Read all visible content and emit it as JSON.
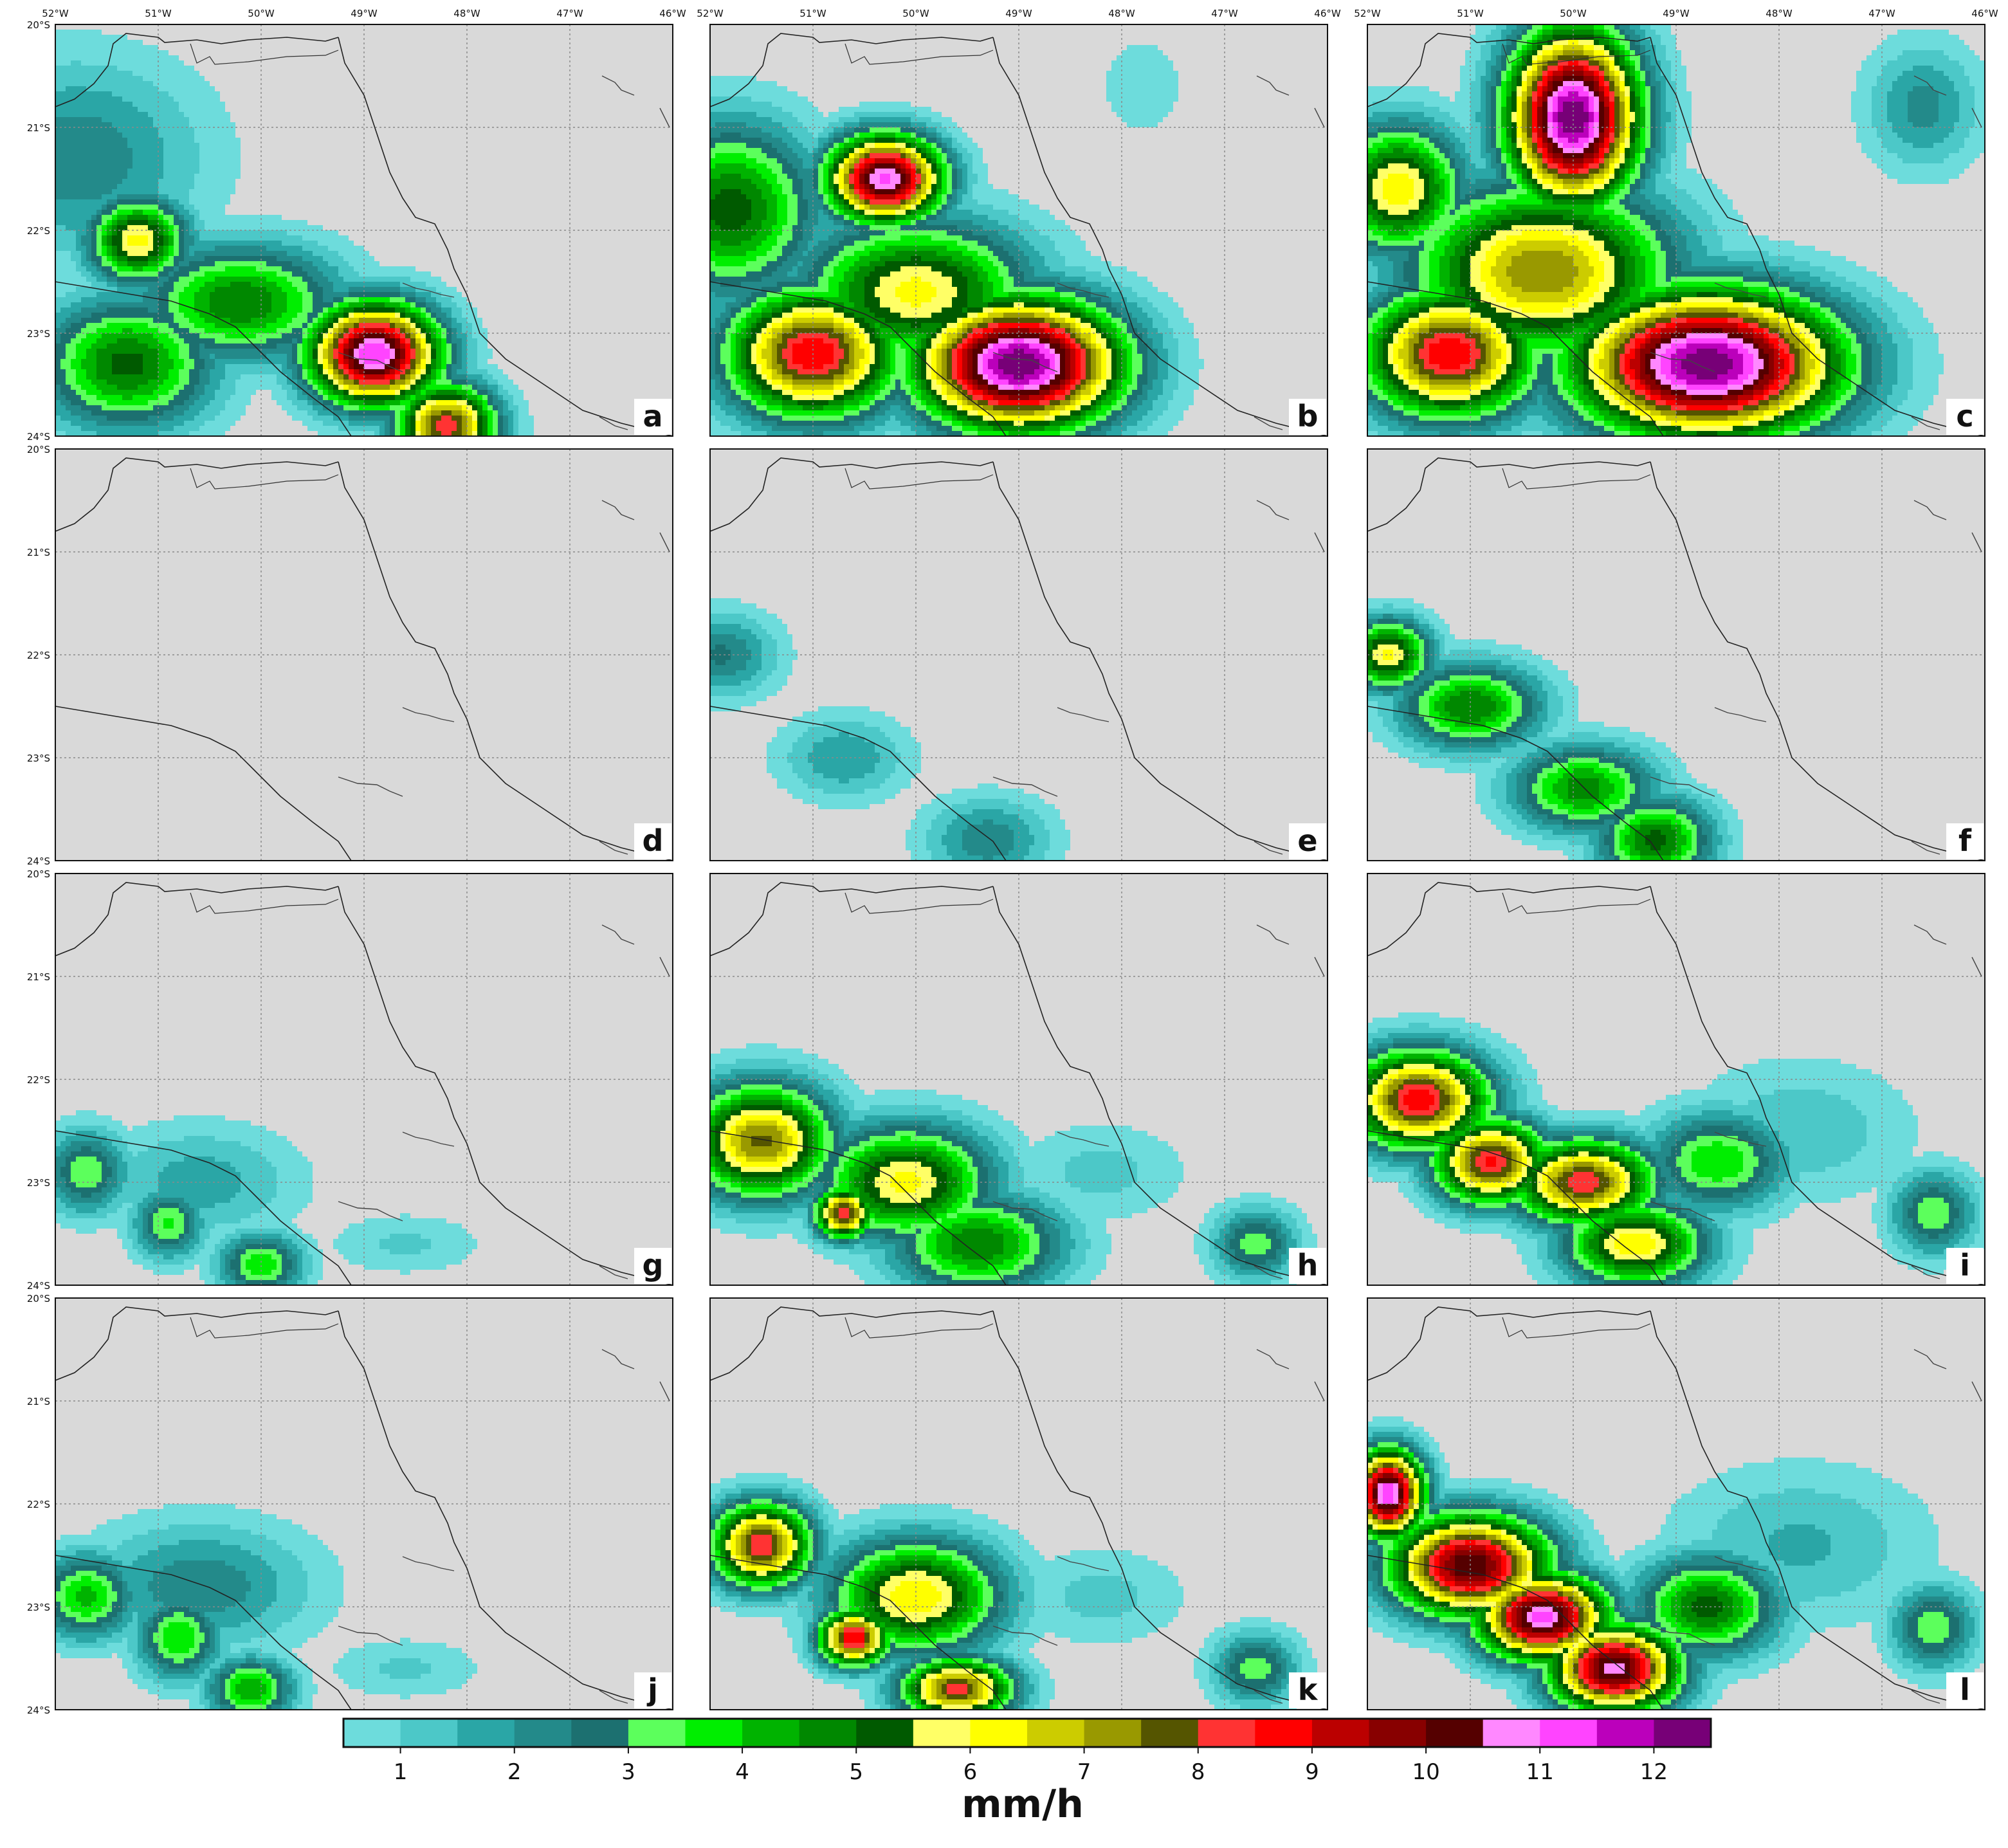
{
  "figure": {
    "lon_ticks": [
      "52°W",
      "51°W",
      "50°W",
      "49°W",
      "48°W",
      "47°W",
      "46°W"
    ],
    "lat_ticks": [
      "20°S",
      "21°S",
      "22°S",
      "23°S",
      "24°S"
    ],
    "lon_range": [
      -52,
      -46
    ],
    "lat_range": [
      -24,
      -20
    ],
    "ocean_color": "#d9d9d9",
    "grid": true
  },
  "panels": [
    {
      "label": "a",
      "rain_cells": [
        {
          "lon": -51.2,
          "lat": -22.1,
          "peak": 6.2,
          "sx": 0.35,
          "sy": 0.3
        },
        {
          "lon": -51.3,
          "lat": -23.3,
          "peak": 5.2,
          "sx": 0.6,
          "sy": 0.45
        },
        {
          "lon": -50.2,
          "lat": -22.7,
          "peak": 5.0,
          "sx": 0.7,
          "sy": 0.4
        },
        {
          "lon": -48.9,
          "lat": -23.2,
          "peak": 11.5,
          "sx": 0.45,
          "sy": 0.35
        },
        {
          "lon": -48.2,
          "lat": -23.9,
          "peak": 8.3,
          "sx": 0.35,
          "sy": 0.3
        },
        {
          "lon": -51.8,
          "lat": -21.3,
          "peak": 2.4,
          "sx": 0.9,
          "sy": 0.7
        }
      ]
    },
    {
      "label": "b",
      "rain_cells": [
        {
          "lon": -50.3,
          "lat": -21.5,
          "peak": 11.2,
          "sx": 0.4,
          "sy": 0.3
        },
        {
          "lon": -51.8,
          "lat": -21.8,
          "peak": 5.3,
          "sx": 0.6,
          "sy": 0.6
        },
        {
          "lon": -51.0,
          "lat": -23.2,
          "peak": 9.0,
          "sx": 0.6,
          "sy": 0.45
        },
        {
          "lon": -49.0,
          "lat": -23.3,
          "peak": 12.5,
          "sx": 0.7,
          "sy": 0.45
        },
        {
          "lon": -50.0,
          "lat": -22.6,
          "peak": 6.2,
          "sx": 0.8,
          "sy": 0.5
        },
        {
          "lon": -47.8,
          "lat": -20.6,
          "peak": 1.0,
          "sx": 0.3,
          "sy": 0.35
        }
      ]
    },
    {
      "label": "c",
      "rain_cells": [
        {
          "lon": -50.0,
          "lat": -20.9,
          "peak": 12.5,
          "sx": 0.45,
          "sy": 0.6
        },
        {
          "lon": -51.7,
          "lat": -21.6,
          "peak": 6.4,
          "sx": 0.45,
          "sy": 0.45
        },
        {
          "lon": -51.2,
          "lat": -23.2,
          "peak": 9.0,
          "sx": 0.6,
          "sy": 0.45
        },
        {
          "lon": -48.7,
          "lat": -23.3,
          "peak": 12.5,
          "sx": 0.9,
          "sy": 0.5
        },
        {
          "lon": -50.3,
          "lat": -22.4,
          "peak": 7.5,
          "sx": 0.9,
          "sy": 0.6
        },
        {
          "lon": -46.6,
          "lat": -20.8,
          "peak": 2.2,
          "sx": 0.4,
          "sy": 0.45
        }
      ]
    },
    {
      "label": "d",
      "rain_cells": []
    },
    {
      "label": "e",
      "rain_cells": [
        {
          "lon": -51.9,
          "lat": -22.0,
          "peak": 2.6,
          "sx": 0.4,
          "sy": 0.3
        },
        {
          "lon": -50.7,
          "lat": -23.0,
          "peak": 2.0,
          "sx": 0.45,
          "sy": 0.3
        },
        {
          "lon": -49.3,
          "lat": -23.8,
          "peak": 2.4,
          "sx": 0.45,
          "sy": 0.3
        }
      ]
    },
    {
      "label": "f",
      "rain_cells": [
        {
          "lon": -51.8,
          "lat": -22.0,
          "peak": 6.2,
          "sx": 0.3,
          "sy": 0.25
        },
        {
          "lon": -51.0,
          "lat": -22.5,
          "peak": 5.0,
          "sx": 0.5,
          "sy": 0.3
        },
        {
          "lon": -49.9,
          "lat": -23.3,
          "peak": 4.8,
          "sx": 0.5,
          "sy": 0.3
        },
        {
          "lon": -49.2,
          "lat": -23.8,
          "peak": 5.2,
          "sx": 0.4,
          "sy": 0.3
        }
      ]
    },
    {
      "label": "g",
      "rain_cells": [
        {
          "lon": -51.7,
          "lat": -22.9,
          "peak": 3.4,
          "sx": 0.3,
          "sy": 0.3
        },
        {
          "lon": -50.9,
          "lat": -23.4,
          "peak": 3.6,
          "sx": 0.25,
          "sy": 0.25
        },
        {
          "lon": -50.0,
          "lat": -23.8,
          "peak": 4.0,
          "sx": 0.3,
          "sy": 0.22
        },
        {
          "lon": -50.6,
          "lat": -23.0,
          "peak": 1.8,
          "sx": 0.7,
          "sy": 0.4
        },
        {
          "lon": -48.6,
          "lat": -23.6,
          "peak": 1.1,
          "sx": 0.55,
          "sy": 0.22
        }
      ]
    },
    {
      "label": "h",
      "rain_cells": [
        {
          "lon": -51.5,
          "lat": -22.6,
          "peak": 7.6,
          "sx": 0.5,
          "sy": 0.4
        },
        {
          "lon": -50.7,
          "lat": -23.3,
          "peak": 8.6,
          "sx": 0.2,
          "sy": 0.18
        },
        {
          "lon": -50.1,
          "lat": -23.0,
          "peak": 6.2,
          "sx": 0.6,
          "sy": 0.4
        },
        {
          "lon": -49.4,
          "lat": -23.6,
          "peak": 5.0,
          "sx": 0.6,
          "sy": 0.35
        },
        {
          "lon": -48.2,
          "lat": -22.9,
          "peak": 1.2,
          "sx": 0.6,
          "sy": 0.35
        },
        {
          "lon": -46.7,
          "lat": -23.6,
          "peak": 3.4,
          "sx": 0.3,
          "sy": 0.25
        }
      ]
    },
    {
      "label": "i",
      "rain_cells": [
        {
          "lon": -51.5,
          "lat": -22.2,
          "peak": 8.8,
          "sx": 0.5,
          "sy": 0.35
        },
        {
          "lon": -50.8,
          "lat": -22.8,
          "peak": 8.6,
          "sx": 0.4,
          "sy": 0.3
        },
        {
          "lon": -49.9,
          "lat": -23.0,
          "peak": 8.4,
          "sx": 0.5,
          "sy": 0.3
        },
        {
          "lon": -49.4,
          "lat": -23.6,
          "peak": 6.5,
          "sx": 0.5,
          "sy": 0.3
        },
        {
          "lon": -48.6,
          "lat": -22.8,
          "peak": 4.0,
          "sx": 0.5,
          "sy": 0.35
        },
        {
          "lon": -46.5,
          "lat": -23.3,
          "peak": 3.4,
          "sx": 0.3,
          "sy": 0.3
        },
        {
          "lon": -47.8,
          "lat": -22.5,
          "peak": 1.4,
          "sx": 0.8,
          "sy": 0.5
        }
      ]
    },
    {
      "label": "j",
      "rain_cells": [
        {
          "lon": -51.7,
          "lat": -22.9,
          "peak": 4.2,
          "sx": 0.35,
          "sy": 0.3
        },
        {
          "lon": -50.8,
          "lat": -23.3,
          "peak": 4.0,
          "sx": 0.3,
          "sy": 0.3
        },
        {
          "lon": -50.1,
          "lat": -23.8,
          "peak": 4.5,
          "sx": 0.3,
          "sy": 0.22
        },
        {
          "lon": -50.6,
          "lat": -22.8,
          "peak": 2.4,
          "sx": 0.8,
          "sy": 0.45
        },
        {
          "lon": -48.6,
          "lat": -23.6,
          "peak": 1.1,
          "sx": 0.55,
          "sy": 0.22
        }
      ]
    },
    {
      "label": "k",
      "rain_cells": [
        {
          "lon": -51.5,
          "lat": -22.4,
          "peak": 8.5,
          "sx": 0.35,
          "sy": 0.3
        },
        {
          "lon": -50.6,
          "lat": -23.3,
          "peak": 9.0,
          "sx": 0.25,
          "sy": 0.2
        },
        {
          "lon": -50.0,
          "lat": -22.9,
          "peak": 6.5,
          "sx": 0.6,
          "sy": 0.4
        },
        {
          "lon": -49.6,
          "lat": -23.8,
          "peak": 8.2,
          "sx": 0.4,
          "sy": 0.22
        },
        {
          "lon": -48.2,
          "lat": -22.9,
          "peak": 1.2,
          "sx": 0.6,
          "sy": 0.35
        },
        {
          "lon": -46.7,
          "lat": -23.6,
          "peak": 3.4,
          "sx": 0.3,
          "sy": 0.25
        }
      ]
    },
    {
      "label": "l",
      "rain_cells": [
        {
          "lon": -51.8,
          "lat": -21.9,
          "peak": 11.5,
          "sx": 0.25,
          "sy": 0.3
        },
        {
          "lon": -51.0,
          "lat": -22.6,
          "peak": 10.5,
          "sx": 0.55,
          "sy": 0.35
        },
        {
          "lon": -50.3,
          "lat": -23.1,
          "peak": 11.2,
          "sx": 0.45,
          "sy": 0.3
        },
        {
          "lon": -49.6,
          "lat": -23.6,
          "peak": 10.8,
          "sx": 0.45,
          "sy": 0.3
        },
        {
          "lon": -48.7,
          "lat": -23.0,
          "peak": 5.2,
          "sx": 0.5,
          "sy": 0.35
        },
        {
          "lon": -46.5,
          "lat": -23.2,
          "peak": 3.5,
          "sx": 0.3,
          "sy": 0.3
        },
        {
          "lon": -47.8,
          "lat": -22.4,
          "peak": 1.6,
          "sx": 0.9,
          "sy": 0.55
        }
      ]
    }
  ],
  "colorbar": {
    "unit": "mm/h",
    "tick_labels": [
      "1",
      "2",
      "3",
      "4",
      "5",
      "6",
      "7",
      "8",
      "9",
      "10",
      "11",
      "12"
    ],
    "min": 0.5,
    "max": 12.5,
    "colors": [
      "#6ddcdc",
      "#4cc8c8",
      "#2aa6a6",
      "#238a8a",
      "#1c7070",
      "#5cff5c",
      "#00ee00",
      "#00b300",
      "#008800",
      "#005a00",
      "#ffff66",
      "#ffff00",
      "#cccc00",
      "#999900",
      "#555500",
      "#ff3333",
      "#ff0000",
      "#bb0000",
      "#880000",
      "#550000",
      "#ff88ff",
      "#ff44ff",
      "#bb00bb",
      "#770077"
    ]
  }
}
